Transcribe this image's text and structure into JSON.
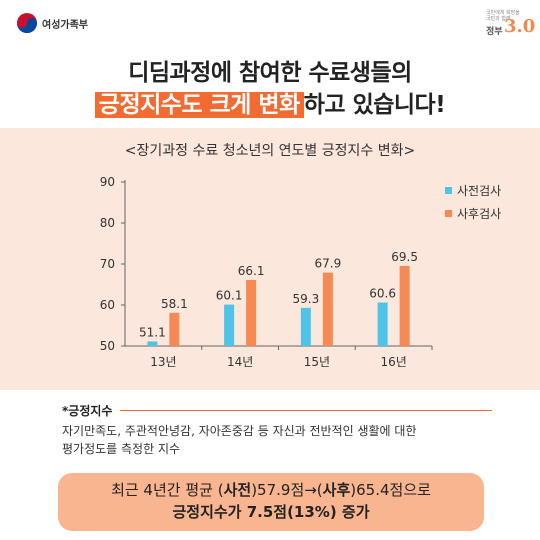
{
  "header": {
    "ministry": "여성가족부",
    "gov_label": "정부",
    "gov_version": "3.0",
    "gov_small": "국민에게 희망을 국민과 함께"
  },
  "title": {
    "line1": "디딤과정에 참여한 수료생들의",
    "line2_highlight": "긍정지수도 크게 변화",
    "line2_rest": "하고 있습니다!"
  },
  "chart_data": {
    "type": "bar",
    "title": "<장기과정 수료 청소년의 연도별 긍정지수 변화>",
    "categories": [
      "13년",
      "14년",
      "15년",
      "16년"
    ],
    "series": [
      {
        "name": "사전검사",
        "color": "#4fc3e8",
        "values": [
          51.1,
          60.1,
          59.3,
          60.6
        ]
      },
      {
        "name": "사후검사",
        "color": "#f58a55",
        "values": [
          58.1,
          66.1,
          67.9,
          69.5
        ]
      }
    ],
    "yticks": [
      "90",
      "80",
      "70",
      "60",
      "50"
    ],
    "ylim": [
      50,
      90
    ],
    "legend": "right",
    "grid": false
  },
  "note": {
    "heading": "*긍정지수",
    "line1": "자기만족도, 주관적안녕감, 자아존중감 등 자신과 전반적인 생활에 대한",
    "line2": "평가정도를 측정한 지수"
  },
  "summary": {
    "l1_a": "최근 4년간 평균 (",
    "l1_b": "사전",
    "l1_c": ")57.9점→(",
    "l1_d": "사후",
    "l1_e": ")65.4점으로",
    "l2": "긍정지수가 7.5점(13%) 증가"
  }
}
